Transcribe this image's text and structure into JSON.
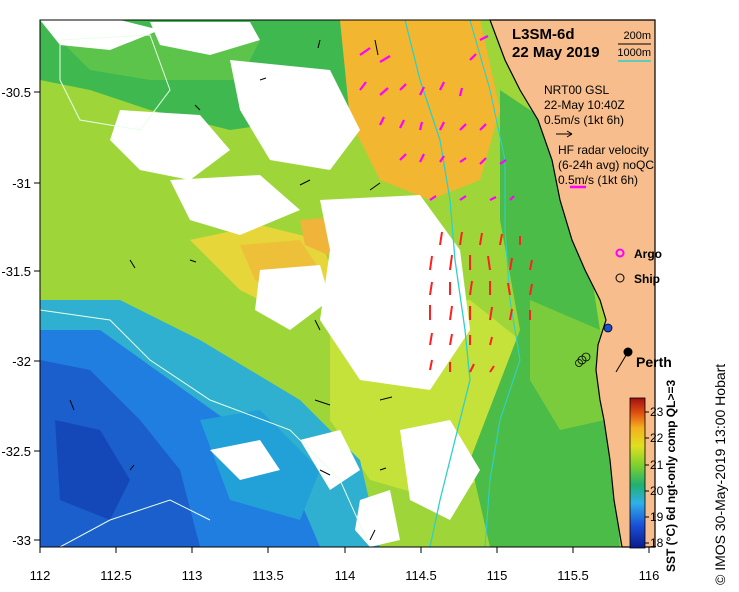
{
  "map": {
    "product": "L3SM-6d",
    "date": "22 May 2019",
    "x_ticks": [
      "112",
      "112.5",
      "113",
      "113.5",
      "114",
      "114.5",
      "115",
      "115.5",
      "116"
    ],
    "y_ticks": [
      "-30.5",
      "-31",
      "-31.5",
      "-32",
      "-32.5",
      "-33"
    ],
    "city": "Perth"
  },
  "legend": {
    "depth_200": "200m",
    "depth_1000": "1000m",
    "gsl_title": "NRT00 GSL",
    "gsl_time": "22-May 10:40Z",
    "gsl_scale": "0.5m/s (1kt 6h)",
    "hf_title": "HF radar velocity",
    "hf_sub": "(6-24h avg) noQC",
    "hf_scale": "0.5m/s (1kt 6h)",
    "argo": "Argo",
    "ship": "Ship",
    "colors": {
      "depth_200": "#000000",
      "depth_1000": "#2fd0c8",
      "hf": "#ff2020",
      "argo": "#ff00ff",
      "land": "#f7bd8c"
    }
  },
  "colorbar": {
    "label": "SST (°C) 6d ngt-only comp QL>=3",
    "ticks": [
      "18",
      "19",
      "20",
      "21",
      "22",
      "23"
    ]
  },
  "credit": "© IMOS 30-May-2019 13:00 Hobart"
}
